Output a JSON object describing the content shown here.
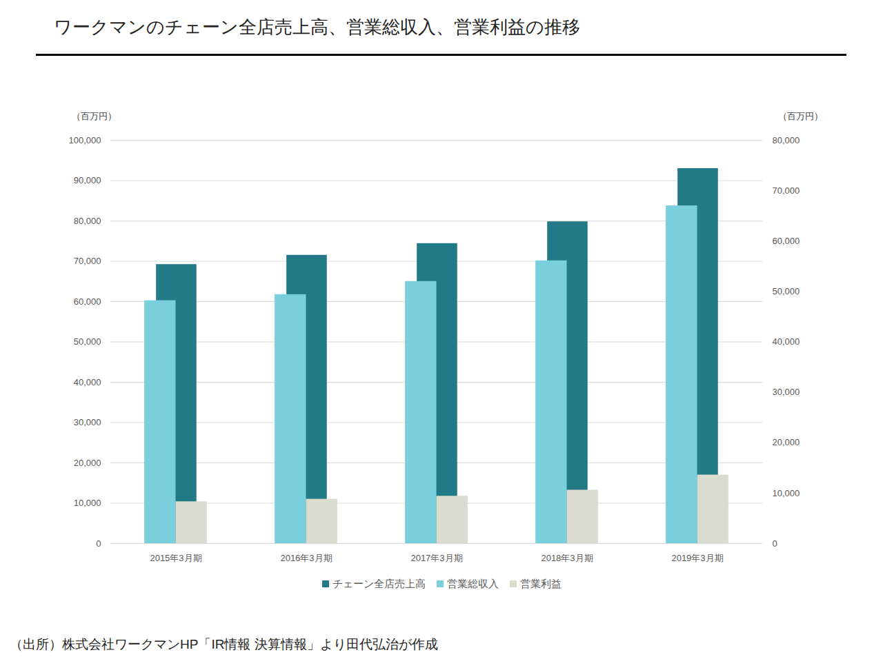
{
  "chart_data": {
    "type": "bar",
    "title": "ワークマンのチェーン全店売上高、営業総収入、営業利益の推移",
    "ylabel": "（百万円）",
    "y2label": "（百万円）",
    "caption": "（出所）株式会社ワークマンHP「IR情報 決算情報」より田代弘治が作成",
    "categories": [
      "2015年3月期",
      "2016年3月期",
      "2017年3月期",
      "2018年3月期",
      "2019年3月期"
    ],
    "series": [
      {
        "name": "チェーン全店売上高",
        "color": "#237a87",
        "values": [
          69200,
          71500,
          74400,
          79800,
          93000
        ]
      },
      {
        "name": "営業総収入",
        "color": "#79cfdc",
        "values": [
          48200,
          49400,
          52000,
          56100,
          67000
        ],
        "axis": "y2"
      },
      {
        "name": "営業利益",
        "color": "#d9dccf",
        "values": [
          8300,
          8800,
          9400,
          10600,
          13600
        ],
        "axis": "y2"
      }
    ],
    "ylim": [
      0,
      100000
    ],
    "yticks": [
      0,
      {
        "value": 10000,
        "label": "10,000"
      },
      {
        "value": 20000,
        "label": "20,000"
      },
      {
        "value": 30000,
        "label": "30,000"
      },
      {
        "value": 40000,
        "label": "40,000"
      },
      {
        "value": 50000,
        "label": "50,000"
      },
      {
        "value": 60000,
        "label": "60,000"
      },
      {
        "value": 70000,
        "label": "70,000"
      },
      {
        "value": 80000,
        "label": "80,000"
      },
      {
        "value": 90000,
        "label": "90,000"
      },
      {
        "value": 100000,
        "label": "100,000"
      }
    ],
    "y2lim": [
      0,
      80000
    ],
    "y2ticks": [
      0,
      {
        "value": 10000,
        "label": "10,000"
      },
      {
        "value": 20000,
        "label": "20,000"
      },
      {
        "value": 30000,
        "label": "30,000"
      },
      {
        "value": 40000,
        "label": "40,000"
      },
      {
        "value": 50000,
        "label": "50,000"
      },
      {
        "value": 60000,
        "label": "60,000"
      },
      {
        "value": 70000,
        "label": "70,000"
      },
      {
        "value": 80000,
        "label": "80,000"
      }
    ],
    "grid": true,
    "legend": "bottom"
  }
}
